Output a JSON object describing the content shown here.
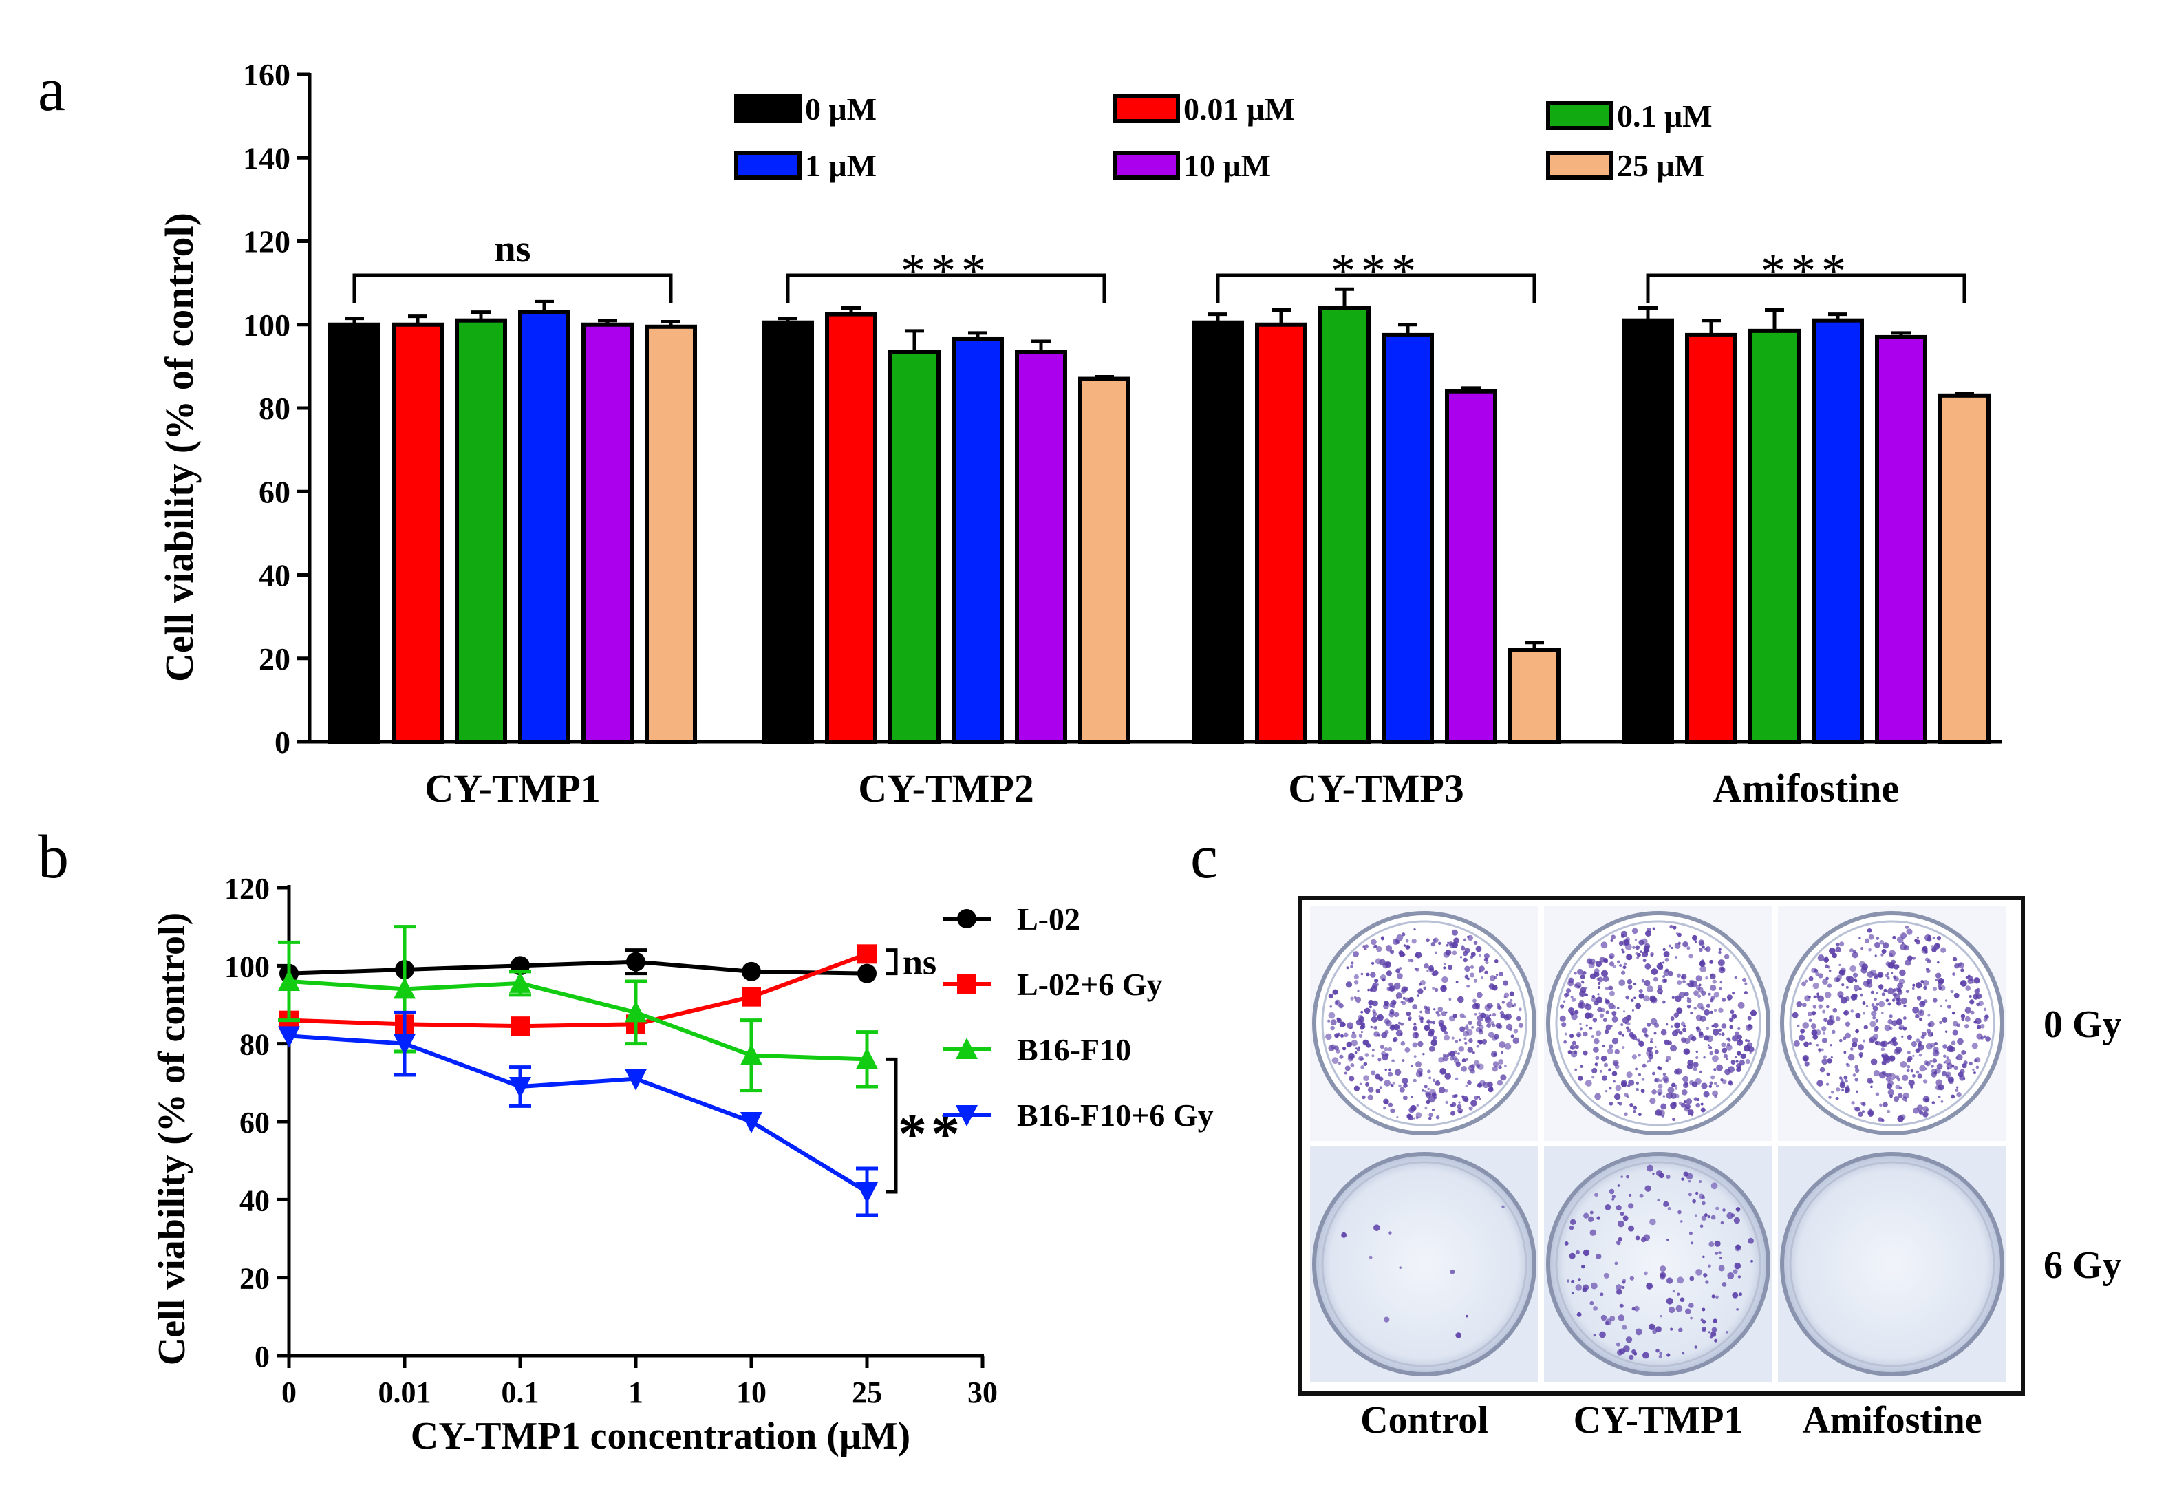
{
  "panel_labels": {
    "a": "a",
    "b": "b",
    "c": "c"
  },
  "chart_data": [
    {
      "panel": "a",
      "type": "bar",
      "title": "",
      "xlabel": "",
      "ylabel": "Cell viability (% of control)",
      "ylim": [
        0,
        160
      ],
      "yticks": [
        0,
        20,
        40,
        60,
        80,
        100,
        120,
        140,
        160
      ],
      "categories": [
        "CY-TMP1",
        "CY-TMP2",
        "CY-TMP3",
        "Amifostine"
      ],
      "category_colors": [
        "#000000",
        "#000000",
        "#000000",
        "#555555"
      ],
      "series": [
        {
          "name": "0 μM",
          "color": "#000000",
          "values": [
            100,
            100.5,
            100.5,
            101
          ],
          "errors": [
            1.5,
            1,
            2,
            3
          ]
        },
        {
          "name": "0.01 μM",
          "color": "#ff0000",
          "values": [
            100,
            102.5,
            100,
            97.5
          ],
          "errors": [
            2,
            1.5,
            3.5,
            3.5
          ]
        },
        {
          "name": "0.1 μM",
          "color": "#11aa11",
          "values": [
            101,
            93.5,
            104,
            98.5
          ],
          "errors": [
            2,
            5,
            4.5,
            5
          ]
        },
        {
          "name": "1 μM",
          "color": "#0022ff",
          "values": [
            103,
            96.5,
            97.5,
            101
          ],
          "errors": [
            2.5,
            1.5,
            2.5,
            1.5
          ]
        },
        {
          "name": "10 μM",
          "color": "#aa00ee",
          "values": [
            100,
            93.5,
            84,
            97
          ],
          "errors": [
            1,
            2.5,
            0.8,
            1
          ]
        },
        {
          "name": "25 μM",
          "color": "#f5b47f",
          "values": [
            99.5,
            87,
            22,
            83
          ],
          "errors": [
            1.2,
            0.5,
            1.8,
            0.5
          ]
        }
      ],
      "significance": [
        "ns",
        "***",
        "***",
        "***"
      ],
      "legend_position": "top"
    },
    {
      "panel": "b",
      "type": "line",
      "title": "",
      "xlabel": "CY-TMP1 concentration (μM)",
      "ylabel": "Cell viability (% of control)",
      "ylim": [
        0,
        120
      ],
      "yticks": [
        0,
        20,
        40,
        60,
        80,
        100,
        120
      ],
      "xticks": [
        "0",
        "0.01",
        "0.1",
        "1",
        "10",
        "25",
        "30"
      ],
      "x": [
        "0",
        "0.01",
        "0.1",
        "1",
        "10",
        "25"
      ],
      "series": [
        {
          "name": "L-02",
          "color": "#000000",
          "marker": "circle",
          "values": [
            98,
            99,
            100,
            101,
            98.5,
            98
          ],
          "errors": [
            0,
            0,
            0,
            3,
            0,
            0
          ]
        },
        {
          "name": "L-02+6 Gy",
          "color": "#ff0000",
          "marker": "square",
          "values": [
            86,
            85,
            84.5,
            85,
            92,
            103
          ],
          "errors": [
            0,
            0,
            0,
            0,
            0,
            0
          ]
        },
        {
          "name": "B16-F10",
          "color": "#11cc11",
          "marker": "triangle-up",
          "values": [
            96,
            94,
            95.5,
            88,
            77,
            76
          ],
          "errors": [
            10,
            16,
            3,
            8,
            9,
            7
          ]
        },
        {
          "name": "B16-F10+6 Gy",
          "color": "#0022ff",
          "marker": "triangle-down",
          "values": [
            82,
            80,
            69,
            71,
            60,
            42
          ],
          "errors": [
            0,
            8,
            5,
            0,
            0,
            6
          ]
        }
      ],
      "significance": [
        {
          "label": "ns",
          "between": [
            "L-02",
            "L-02+6 Gy"
          ]
        },
        {
          "label": "**",
          "between": [
            "B16-F10",
            "B16-F10+6 Gy"
          ]
        }
      ],
      "legend_position": "right"
    }
  ],
  "panel_c": {
    "columns": [
      "Control",
      "CY-TMP1",
      "Amifostine"
    ],
    "column_colors": [
      "#000000",
      "#000000",
      "#555555"
    ],
    "rows": [
      "0 Gy",
      "6 Gy"
    ],
    "colony_colors": {
      "stain": "#5b3fa8",
      "plate_bg": "#ffffff",
      "dish_bg": "#dde6f3",
      "frame": "#111111"
    },
    "colony_density": [
      [
        1.0,
        1.0,
        1.0
      ],
      [
        0.02,
        0.35,
        0.0
      ]
    ]
  }
}
